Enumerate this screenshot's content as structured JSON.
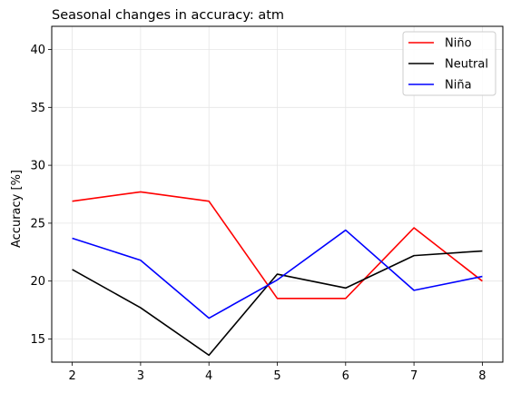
{
  "chart_data": {
    "type": "line",
    "title": "Seasonal changes in accuracy: atm",
    "xlabel": "",
    "ylabel": "Accuracy [%]",
    "x": [
      2,
      3,
      4,
      5,
      6,
      7,
      8
    ],
    "xlim": [
      1.7,
      8.3
    ],
    "ylim": [
      13.0,
      42.0
    ],
    "x_ticks": [
      2,
      3,
      4,
      5,
      6,
      7,
      8
    ],
    "y_ticks": [
      15,
      20,
      25,
      30,
      35,
      40
    ],
    "grid": true,
    "legend_position": "top-right",
    "series": [
      {
        "name": "Niño",
        "color": "#ff0000",
        "values": [
          26.9,
          27.7,
          26.9,
          18.5,
          18.5,
          24.6,
          20.0
        ]
      },
      {
        "name": "Neutral",
        "color": "#000000",
        "values": [
          21.0,
          17.7,
          13.6,
          20.6,
          19.4,
          22.2,
          22.6
        ]
      },
      {
        "name": "Niña",
        "color": "#0000ff",
        "values": [
          23.7,
          21.8,
          16.8,
          20.1,
          24.4,
          19.2,
          20.4
        ]
      }
    ]
  }
}
